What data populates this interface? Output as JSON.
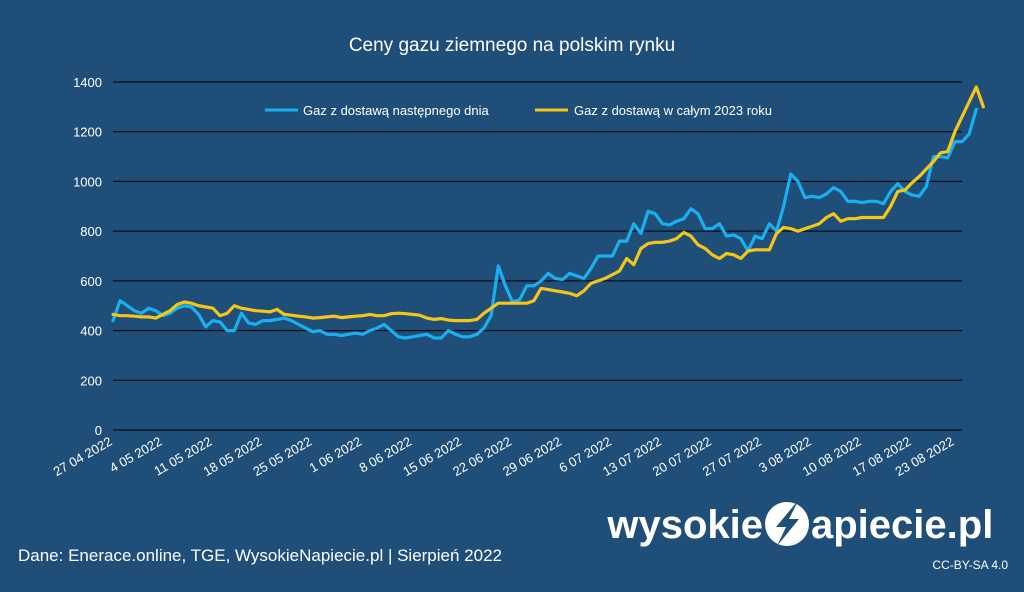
{
  "chart_data": {
    "type": "line",
    "title": "Ceny gazu ziemnego na polskim rynku",
    "xlabel": "",
    "ylabel": "",
    "ylim": [
      0,
      1400
    ],
    "yticks": [
      0,
      200,
      400,
      600,
      800,
      1000,
      1200,
      1400
    ],
    "grid": true,
    "legend_position": "top",
    "x_start": "2022-04-27",
    "x_end": "2022-08-24",
    "xtick_labels": [
      "27 04 2022",
      "4 05 2022",
      "11 05 2022",
      "18 05 2022",
      "25 05 2022",
      "1 06 2022",
      "8 06 2022",
      "15 06 2022",
      "22 06 2022",
      "29 06 2022",
      "6 07 2022",
      "13 07 2022",
      "20 07 2022",
      "27 07 2022",
      "3 08 2022",
      "10 08 2022",
      "17 08 2022",
      "23 08 2022"
    ],
    "xtick_dates": [
      "2022-04-27",
      "2022-05-04",
      "2022-05-11",
      "2022-05-18",
      "2022-05-25",
      "2022-06-01",
      "2022-06-08",
      "2022-06-15",
      "2022-06-22",
      "2022-06-29",
      "2022-07-06",
      "2022-07-13",
      "2022-07-20",
      "2022-07-27",
      "2022-08-03",
      "2022-08-10",
      "2022-08-17",
      "2022-08-23"
    ],
    "series": [
      {
        "name": "Gaz z dostawą następnego dnia",
        "color": "#1ab0f0",
        "points": [
          [
            "2022-04-27",
            440
          ],
          [
            "2022-04-28",
            520
          ],
          [
            "2022-04-29",
            500
          ],
          [
            "2022-04-30",
            480
          ],
          [
            "2022-05-01",
            470
          ],
          [
            "2022-05-02",
            490
          ],
          [
            "2022-05-03",
            480
          ],
          [
            "2022-05-04",
            460
          ],
          [
            "2022-05-05",
            470
          ],
          [
            "2022-05-06",
            490
          ],
          [
            "2022-05-07",
            500
          ],
          [
            "2022-05-08",
            495
          ],
          [
            "2022-05-09",
            465
          ],
          [
            "2022-05-10",
            415
          ],
          [
            "2022-05-11",
            440
          ],
          [
            "2022-05-12",
            435
          ],
          [
            "2022-05-13",
            400
          ],
          [
            "2022-05-14",
            400
          ],
          [
            "2022-05-15",
            470
          ],
          [
            "2022-05-16",
            430
          ],
          [
            "2022-05-17",
            425
          ],
          [
            "2022-05-18",
            440
          ],
          [
            "2022-05-19",
            440
          ],
          [
            "2022-05-20",
            445
          ],
          [
            "2022-05-21",
            450
          ],
          [
            "2022-05-22",
            440
          ],
          [
            "2022-05-23",
            425
          ],
          [
            "2022-05-24",
            410
          ],
          [
            "2022-05-25",
            395
          ],
          [
            "2022-05-26",
            400
          ],
          [
            "2022-05-27",
            385
          ],
          [
            "2022-05-28",
            385
          ],
          [
            "2022-05-29",
            380
          ],
          [
            "2022-05-30",
            385
          ],
          [
            "2022-05-31",
            390
          ],
          [
            "2022-06-01",
            385
          ],
          [
            "2022-06-02",
            400
          ],
          [
            "2022-06-03",
            410
          ],
          [
            "2022-06-04",
            425
          ],
          [
            "2022-06-05",
            400
          ],
          [
            "2022-06-06",
            375
          ],
          [
            "2022-06-07",
            370
          ],
          [
            "2022-06-08",
            375
          ],
          [
            "2022-06-09",
            380
          ],
          [
            "2022-06-10",
            385
          ],
          [
            "2022-06-11",
            370
          ],
          [
            "2022-06-12",
            370
          ],
          [
            "2022-06-13",
            400
          ],
          [
            "2022-06-14",
            385
          ],
          [
            "2022-06-15",
            375
          ],
          [
            "2022-06-16",
            375
          ],
          [
            "2022-06-17",
            385
          ],
          [
            "2022-06-18",
            410
          ],
          [
            "2022-06-19",
            460
          ],
          [
            "2022-06-20",
            660
          ],
          [
            "2022-06-21",
            580
          ],
          [
            "2022-06-22",
            515
          ],
          [
            "2022-06-23",
            525
          ],
          [
            "2022-06-24",
            580
          ],
          [
            "2022-06-25",
            580
          ],
          [
            "2022-06-26",
            600
          ],
          [
            "2022-06-27",
            630
          ],
          [
            "2022-06-28",
            610
          ],
          [
            "2022-06-29",
            605
          ],
          [
            "2022-06-30",
            630
          ],
          [
            "2022-07-01",
            620
          ],
          [
            "2022-07-02",
            610
          ],
          [
            "2022-07-03",
            650
          ],
          [
            "2022-07-04",
            700
          ],
          [
            "2022-07-05",
            700
          ],
          [
            "2022-07-06",
            700
          ],
          [
            "2022-07-07",
            760
          ],
          [
            "2022-07-08",
            760
          ],
          [
            "2022-07-09",
            830
          ],
          [
            "2022-07-10",
            790
          ],
          [
            "2022-07-11",
            880
          ],
          [
            "2022-07-12",
            870
          ],
          [
            "2022-07-13",
            830
          ],
          [
            "2022-07-14",
            825
          ],
          [
            "2022-07-15",
            840
          ],
          [
            "2022-07-16",
            850
          ],
          [
            "2022-07-17",
            890
          ],
          [
            "2022-07-18",
            870
          ],
          [
            "2022-07-19",
            810
          ],
          [
            "2022-07-20",
            810
          ],
          [
            "2022-07-21",
            830
          ],
          [
            "2022-07-22",
            780
          ],
          [
            "2022-07-23",
            785
          ],
          [
            "2022-07-24",
            770
          ],
          [
            "2022-07-25",
            720
          ],
          [
            "2022-07-26",
            780
          ],
          [
            "2022-07-27",
            770
          ],
          [
            "2022-07-28",
            830
          ],
          [
            "2022-07-29",
            800
          ],
          [
            "2022-07-30",
            900
          ],
          [
            "2022-07-31",
            1030
          ],
          [
            "2022-08-01",
            1000
          ],
          [
            "2022-08-02",
            935
          ],
          [
            "2022-08-03",
            940
          ],
          [
            "2022-08-04",
            935
          ],
          [
            "2022-08-05",
            950
          ],
          [
            "2022-08-06",
            975
          ],
          [
            "2022-08-07",
            960
          ],
          [
            "2022-08-08",
            920
          ],
          [
            "2022-08-09",
            920
          ],
          [
            "2022-08-10",
            915
          ],
          [
            "2022-08-11",
            920
          ],
          [
            "2022-08-12",
            920
          ],
          [
            "2022-08-13",
            910
          ],
          [
            "2022-08-14",
            960
          ],
          [
            "2022-08-15",
            990
          ],
          [
            "2022-08-16",
            960
          ],
          [
            "2022-08-17",
            945
          ],
          [
            "2022-08-18",
            940
          ],
          [
            "2022-08-19",
            980
          ],
          [
            "2022-08-20",
            1100
          ],
          [
            "2022-08-21",
            1100
          ],
          [
            "2022-08-22",
            1095
          ],
          [
            "2022-08-23",
            1160
          ],
          [
            "2022-08-24",
            1160
          ],
          [
            "2022-08-25",
            1190
          ],
          [
            "2022-08-26",
            1290
          ]
        ]
      },
      {
        "name": "Gaz z dostawą w całym 2023 roku",
        "color": "#f5c518",
        "points": [
          [
            "2022-04-27",
            465
          ],
          [
            "2022-04-28",
            460
          ],
          [
            "2022-04-29",
            460
          ],
          [
            "2022-04-30",
            458
          ],
          [
            "2022-05-01",
            455
          ],
          [
            "2022-05-02",
            455
          ],
          [
            "2022-05-03",
            450
          ],
          [
            "2022-05-04",
            465
          ],
          [
            "2022-05-05",
            480
          ],
          [
            "2022-05-06",
            505
          ],
          [
            "2022-05-07",
            515
          ],
          [
            "2022-05-08",
            510
          ],
          [
            "2022-05-09",
            500
          ],
          [
            "2022-05-10",
            495
          ],
          [
            "2022-05-11",
            490
          ],
          [
            "2022-05-12",
            460
          ],
          [
            "2022-05-13",
            470
          ],
          [
            "2022-05-14",
            500
          ],
          [
            "2022-05-15",
            490
          ],
          [
            "2022-05-16",
            485
          ],
          [
            "2022-05-17",
            480
          ],
          [
            "2022-05-18",
            478
          ],
          [
            "2022-05-19",
            475
          ],
          [
            "2022-05-20",
            485
          ],
          [
            "2022-05-21",
            465
          ],
          [
            "2022-05-22",
            462
          ],
          [
            "2022-05-23",
            458
          ],
          [
            "2022-05-24",
            455
          ],
          [
            "2022-05-25",
            450
          ],
          [
            "2022-05-26",
            452
          ],
          [
            "2022-05-27",
            455
          ],
          [
            "2022-05-28",
            458
          ],
          [
            "2022-05-29",
            452
          ],
          [
            "2022-05-30",
            455
          ],
          [
            "2022-05-31",
            458
          ],
          [
            "2022-06-01",
            460
          ],
          [
            "2022-06-02",
            465
          ],
          [
            "2022-06-03",
            460
          ],
          [
            "2022-06-04",
            460
          ],
          [
            "2022-06-05",
            468
          ],
          [
            "2022-06-06",
            470
          ],
          [
            "2022-06-07",
            468
          ],
          [
            "2022-06-08",
            465
          ],
          [
            "2022-06-09",
            462
          ],
          [
            "2022-06-10",
            450
          ],
          [
            "2022-06-11",
            445
          ],
          [
            "2022-06-12",
            448
          ],
          [
            "2022-06-13",
            442
          ],
          [
            "2022-06-14",
            440
          ],
          [
            "2022-06-15",
            440
          ],
          [
            "2022-06-16",
            440
          ],
          [
            "2022-06-17",
            445
          ],
          [
            "2022-06-18",
            470
          ],
          [
            "2022-06-19",
            490
          ],
          [
            "2022-06-20",
            510
          ],
          [
            "2022-06-21",
            510
          ],
          [
            "2022-06-22",
            510
          ],
          [
            "2022-06-23",
            510
          ],
          [
            "2022-06-24",
            510
          ],
          [
            "2022-06-25",
            520
          ],
          [
            "2022-06-26",
            570
          ],
          [
            "2022-06-27",
            565
          ],
          [
            "2022-06-28",
            560
          ],
          [
            "2022-06-29",
            555
          ],
          [
            "2022-06-30",
            550
          ],
          [
            "2022-07-01",
            540
          ],
          [
            "2022-07-02",
            560
          ],
          [
            "2022-07-03",
            590
          ],
          [
            "2022-07-04",
            600
          ],
          [
            "2022-07-05",
            610
          ],
          [
            "2022-07-06",
            625
          ],
          [
            "2022-07-07",
            640
          ],
          [
            "2022-07-08",
            690
          ],
          [
            "2022-07-09",
            665
          ],
          [
            "2022-07-10",
            730
          ],
          [
            "2022-07-11",
            750
          ],
          [
            "2022-07-12",
            755
          ],
          [
            "2022-07-13",
            755
          ],
          [
            "2022-07-14",
            760
          ],
          [
            "2022-07-15",
            770
          ],
          [
            "2022-07-16",
            795
          ],
          [
            "2022-07-17",
            780
          ],
          [
            "2022-07-18",
            745
          ],
          [
            "2022-07-19",
            730
          ],
          [
            "2022-07-20",
            705
          ],
          [
            "2022-07-21",
            690
          ],
          [
            "2022-07-22",
            710
          ],
          [
            "2022-07-23",
            705
          ],
          [
            "2022-07-24",
            690
          ],
          [
            "2022-07-25",
            720
          ],
          [
            "2022-07-26",
            725
          ],
          [
            "2022-07-27",
            725
          ],
          [
            "2022-07-28",
            725
          ],
          [
            "2022-07-29",
            790
          ],
          [
            "2022-07-30",
            815
          ],
          [
            "2022-07-31",
            810
          ],
          [
            "2022-08-01",
            800
          ],
          [
            "2022-08-02",
            810
          ],
          [
            "2022-08-03",
            820
          ],
          [
            "2022-08-04",
            830
          ],
          [
            "2022-08-05",
            855
          ],
          [
            "2022-08-06",
            870
          ],
          [
            "2022-08-07",
            840
          ],
          [
            "2022-08-08",
            850
          ],
          [
            "2022-08-09",
            850
          ],
          [
            "2022-08-10",
            855
          ],
          [
            "2022-08-11",
            855
          ],
          [
            "2022-08-12",
            855
          ],
          [
            "2022-08-13",
            855
          ],
          [
            "2022-08-14",
            900
          ],
          [
            "2022-08-15",
            960
          ],
          [
            "2022-08-16",
            965
          ],
          [
            "2022-08-17",
            995
          ],
          [
            "2022-08-18",
            1020
          ],
          [
            "2022-08-19",
            1050
          ],
          [
            "2022-08-20",
            1080
          ],
          [
            "2022-08-21",
            1115
          ],
          [
            "2022-08-22",
            1120
          ],
          [
            "2022-08-23",
            1200
          ],
          [
            "2022-08-24",
            1260
          ],
          [
            "2022-08-25",
            1320
          ],
          [
            "2022-08-26",
            1380
          ],
          [
            "2022-08-27",
            1300
          ]
        ]
      }
    ]
  },
  "footer": {
    "source": "Dane: Enerace.online, TGE, WysokieNapiecie.pl  |  Sierpień 2022",
    "license": "CC-BY-SA 4.0"
  },
  "logo": {
    "text_left": "wysokie",
    "text_right": "apiecie.pl",
    "colors": {
      "text": "#ffffff",
      "badge": "#ffffff",
      "bolt": "#1f4e79"
    }
  },
  "colors": {
    "background": "#1f4e79",
    "grid": "#000000",
    "text": "#ffffff"
  }
}
